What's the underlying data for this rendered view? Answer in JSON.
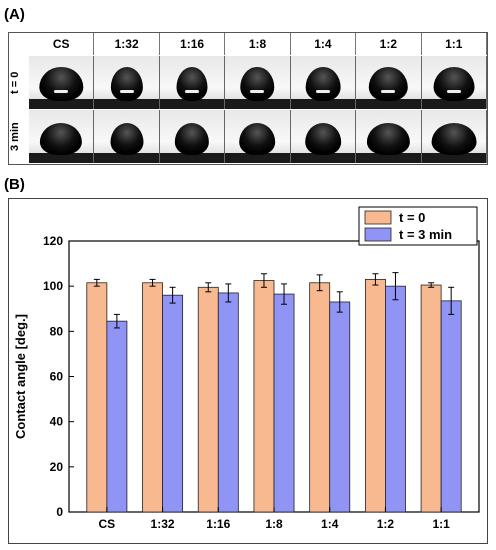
{
  "panels": {
    "a_label": "(A)",
    "b_label": "(B)"
  },
  "photo_grid": {
    "columns": [
      "CS",
      "1:32",
      "1:16",
      "1:8",
      "1:4",
      "1:2",
      "1:1"
    ],
    "rows": [
      "t = 0",
      "3 min"
    ]
  },
  "chart_data": {
    "type": "bar",
    "categories": [
      "CS",
      "1:32",
      "1:16",
      "1:8",
      "1:4",
      "1:2",
      "1:1"
    ],
    "series": [
      {
        "name": "t = 0",
        "color": "#f9b990",
        "values": [
          101.5,
          101.5,
          99.5,
          102.5,
          101.5,
          103,
          100.5
        ],
        "errors": [
          1.5,
          1.5,
          2,
          3,
          3.5,
          2.5,
          1
        ]
      },
      {
        "name": "t = 3 min",
        "color": "#8f94f5",
        "values": [
          84.5,
          96,
          97,
          96.5,
          93,
          100,
          93.5
        ],
        "errors": [
          3,
          3.5,
          4,
          4.5,
          4.5,
          6,
          6
        ]
      }
    ],
    "title": "",
    "xlabel": "",
    "ylabel": "Contact angle [deg.]",
    "ylim": [
      0,
      120
    ],
    "yticks": [
      0,
      20,
      40,
      60,
      80,
      100,
      120
    ],
    "grid": false,
    "legend_position": "top-right"
  }
}
